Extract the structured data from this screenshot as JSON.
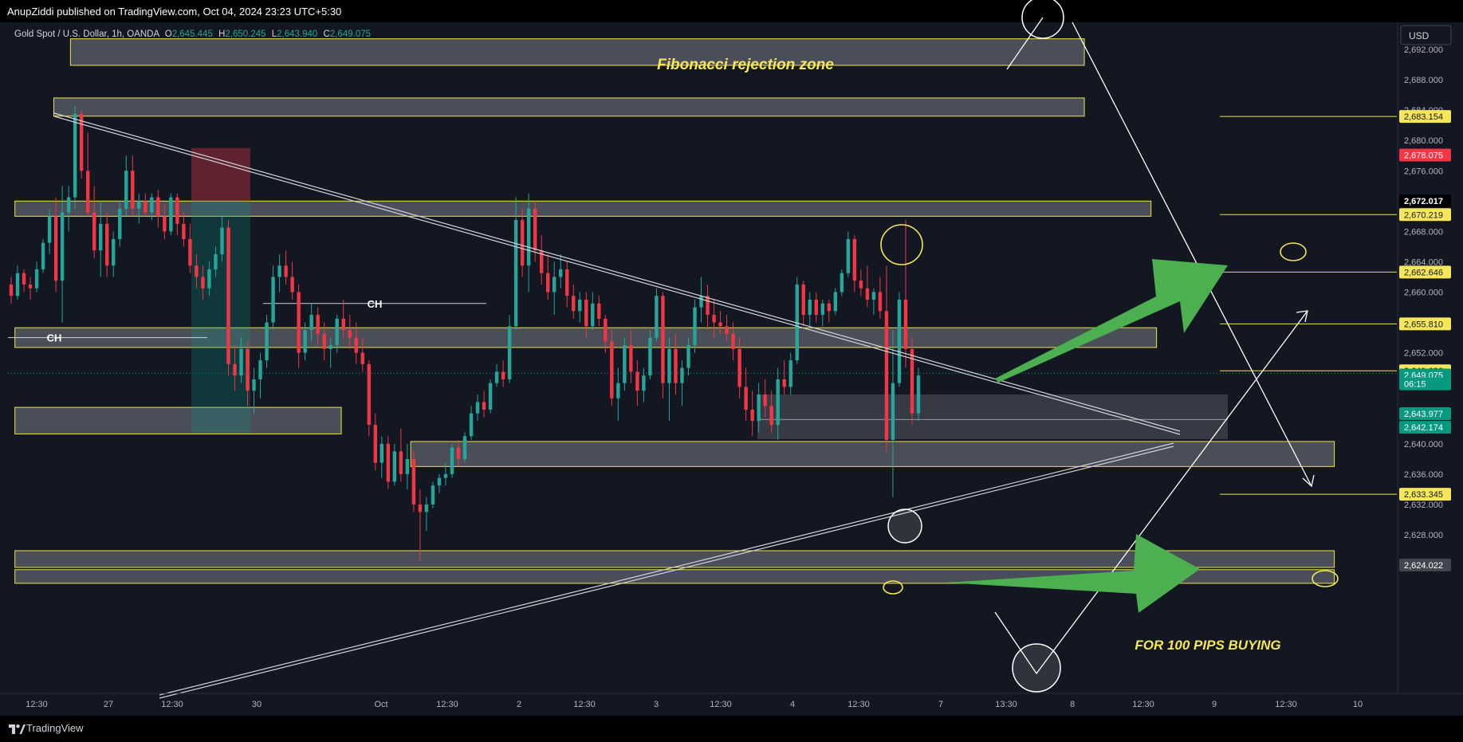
{
  "header": {
    "publisher": "AnupZiddi published on TradingView.com, Oct 04, 2024 23:23 UTC+5:30"
  },
  "legend": {
    "symbol": "Gold Spot / U.S. Dollar, 1h, OANDA",
    "o_label": "O",
    "o_value": "2,645.445",
    "h_label": "H",
    "h_value": "2,650.245",
    "l_label": "L",
    "l_value": "2,643.940",
    "c_label": "C",
    "c_value": "2,649.075"
  },
  "currency": "USD",
  "footer": {
    "brand": "TradingView"
  },
  "colors": {
    "background": "#131722",
    "up": "#26a69a",
    "down": "#f23645",
    "zone_border": "#f0e442",
    "annotation": "#f5e65a",
    "arrow": "#4caf50",
    "last_price": "#089981",
    "red_label": "#f23645"
  },
  "annotations": {
    "fib_zone": "Fibonacci rejection zone",
    "buy_text": "FOR 100 PIPS BUYING",
    "ch_left": "CH",
    "ch_mid": "CH"
  },
  "chart_data": {
    "type": "candlestick",
    "ylim": [
      2621,
      2694
    ],
    "y_ticks": [
      "2,628.000",
      "2,632.000",
      "2,636.000",
      "2,640.000",
      "2,644.000",
      "2,648.000",
      "2,652.000",
      "2,656.000",
      "2,660.000",
      "2,664.000",
      "2,668.000",
      "2,672.000",
      "2,676.000",
      "2,680.000",
      "2,684.000",
      "2,688.000",
      "2,692.000"
    ],
    "x_ticks": [
      "12:30",
      "27",
      "12:30",
      "30",
      "Oct",
      "12:30",
      "2",
      "12:30",
      "3",
      "12:30",
      "4",
      "12:30",
      "7",
      "13:30",
      "8",
      "12:30",
      "9",
      "12:30",
      "10"
    ],
    "price_labels": [
      {
        "text": "2,683.154",
        "price": 2683.154,
        "style": "yellow"
      },
      {
        "text": "2,678.075",
        "price": 2678.075,
        "style": "red"
      },
      {
        "text": "2,672.017",
        "price": 2672.017,
        "style": "black"
      },
      {
        "text": "2,670.219",
        "price": 2670.219,
        "style": "yellow"
      },
      {
        "text": "2,662.646",
        "price": 2662.646,
        "style": "yellow"
      },
      {
        "text": "2,655.810",
        "price": 2655.81,
        "style": "yellow"
      },
      {
        "text": "2,649.626",
        "price": 2649.626,
        "style": "yellow"
      },
      {
        "text": "2,649.075",
        "price": 2649.075,
        "style": "green"
      },
      {
        "text": "06:15",
        "price": 2647.9,
        "style": "green-sub"
      },
      {
        "text": "2,643.977",
        "price": 2643.977,
        "style": "green"
      },
      {
        "text": "2,642.174",
        "price": 2642.174,
        "style": "green"
      },
      {
        "text": "2,633.345",
        "price": 2633.345,
        "style": "yellow"
      },
      {
        "text": "2,624.022",
        "price": 2624.022,
        "style": "gray"
      }
    ],
    "zones": [
      {
        "name": "fib-zone",
        "x1": 0.045,
        "x2": 0.775,
        "p1": 2693.4,
        "p2": 2689.9
      },
      {
        "name": "upper-resistance-zone",
        "x1": 0.033,
        "x2": 0.775,
        "p1": 2685.6,
        "p2": 2683.2
      },
      {
        "name": "resistance-zone-2670",
        "x1": 0.005,
        "x2": 0.823,
        "p1": 2672.0,
        "p2": 2670.0
      },
      {
        "name": "ch-zone-2654",
        "x1": 0.005,
        "x2": 0.827,
        "p1": 2655.3,
        "p2": 2652.7
      },
      {
        "name": "left-support-zone",
        "x1": 0.005,
        "x2": 0.24,
        "p1": 2644.8,
        "p2": 2641.3
      },
      {
        "name": "support-zone-2639",
        "x1": 0.29,
        "x2": 0.955,
        "p1": 2640.3,
        "p2": 2637.0
      },
      {
        "name": "bottom-zone-2625",
        "x1": 0.005,
        "x2": 0.955,
        "p1": 2625.9,
        "p2": 2623.7
      },
      {
        "name": "bottom-zone-2622",
        "x1": 0.005,
        "x2": 0.955,
        "p1": 2623.4,
        "p2": 2621.6
      }
    ],
    "candles": [
      [
        2661.0,
        2662.0,
        2658.5,
        2659.5
      ],
      [
        2659.5,
        2663.5,
        2659.0,
        2662.5
      ],
      [
        2662.5,
        2663.0,
        2660.0,
        2661.0
      ],
      [
        2661.0,
        2662.0,
        2659.0,
        2660.5
      ],
      [
        2660.5,
        2664.0,
        2660.0,
        2663.0
      ],
      [
        2663.0,
        2667.0,
        2662.5,
        2666.5
      ],
      [
        2666.5,
        2671.0,
        2665.0,
        2670.0
      ],
      [
        2670.0,
        2672.5,
        2660.0,
        2661.5
      ],
      [
        2661.5,
        2674.0,
        2656.0,
        2670.5
      ],
      [
        2670.5,
        2674.0,
        2668.0,
        2672.5
      ],
      [
        2672.5,
        2684.5,
        2671.0,
        2683.5
      ],
      [
        2683.5,
        2684.0,
        2675.0,
        2676.0
      ],
      [
        2676.0,
        2681.0,
        2670.0,
        2670.5
      ],
      [
        2670.5,
        2674.0,
        2664.5,
        2665.5
      ],
      [
        2665.5,
        2672.0,
        2662.0,
        2669.0
      ],
      [
        2669.0,
        2670.5,
        2662.0,
        2663.5
      ],
      [
        2663.5,
        2668.0,
        2662.0,
        2667.0
      ],
      [
        2667.0,
        2672.0,
        2666.0,
        2671.0
      ],
      [
        2671.0,
        2678.0,
        2670.0,
        2676.0
      ],
      [
        2676.0,
        2678.0,
        2670.0,
        2671.0
      ],
      [
        2671.0,
        2673.0,
        2669.0,
        2672.0
      ],
      [
        2672.0,
        2673.0,
        2670.0,
        2670.5
      ],
      [
        2670.5,
        2673.0,
        2669.5,
        2672.5
      ],
      [
        2672.5,
        2673.5,
        2668.5,
        2670.0
      ],
      [
        2670.0,
        2671.5,
        2667.0,
        2668.0
      ],
      [
        2668.0,
        2673.0,
        2667.5,
        2672.5
      ],
      [
        2672.5,
        2673.0,
        2667.5,
        2669.0
      ],
      [
        2669.0,
        2670.5,
        2666.0,
        2667.0
      ],
      [
        2667.0,
        2669.0,
        2662.5,
        2663.5
      ],
      [
        2663.5,
        2665.0,
        2660.5,
        2662.0
      ],
      [
        2662.0,
        2663.5,
        2659.0,
        2660.5
      ],
      [
        2660.5,
        2664.0,
        2659.5,
        2663.0
      ],
      [
        2663.0,
        2666.0,
        2662.0,
        2665.0
      ],
      [
        2665.0,
        2670.0,
        2664.0,
        2668.5
      ],
      [
        2668.5,
        2669.5,
        2649.0,
        2650.5
      ],
      [
        2650.5,
        2653.0,
        2647.0,
        2649.0
      ],
      [
        2649.0,
        2654.0,
        2648.0,
        2652.5
      ],
      [
        2652.5,
        2653.5,
        2645.0,
        2647.0
      ],
      [
        2647.0,
        2650.0,
        2644.0,
        2648.5
      ],
      [
        2648.5,
        2652.0,
        2646.0,
        2651.0
      ],
      [
        2651.0,
        2657.0,
        2650.0,
        2656.0
      ],
      [
        2656.0,
        2663.5,
        2655.0,
        2662.0
      ],
      [
        2662.0,
        2665.0,
        2660.0,
        2663.5
      ],
      [
        2663.5,
        2665.5,
        2661.0,
        2662.0
      ],
      [
        2662.0,
        2664.0,
        2659.0,
        2660.0
      ],
      [
        2660.0,
        2661.0,
        2650.0,
        2652.0
      ],
      [
        2652.0,
        2656.0,
        2651.0,
        2655.0
      ],
      [
        2655.0,
        2658.5,
        2653.5,
        2657.0
      ],
      [
        2657.0,
        2658.0,
        2653.0,
        2654.5
      ],
      [
        2654.5,
        2656.0,
        2651.0,
        2652.5
      ],
      [
        2652.5,
        2654.0,
        2650.0,
        2653.0
      ],
      [
        2653.0,
        2657.0,
        2652.0,
        2656.5
      ],
      [
        2656.5,
        2659.0,
        2654.0,
        2655.0
      ],
      [
        2655.0,
        2657.0,
        2652.5,
        2654.0
      ],
      [
        2654.0,
        2656.0,
        2650.5,
        2652.0
      ],
      [
        2652.0,
        2654.0,
        2649.5,
        2650.5
      ],
      [
        2650.5,
        2651.0,
        2641.0,
        2642.5
      ],
      [
        2642.5,
        2644.0,
        2636.5,
        2637.5
      ],
      [
        2637.5,
        2641.0,
        2635.5,
        2640.0
      ],
      [
        2640.0,
        2641.0,
        2634.0,
        2635.0
      ],
      [
        2635.0,
        2640.0,
        2634.5,
        2639.0
      ],
      [
        2639.0,
        2642.0,
        2635.0,
        2636.0
      ],
      [
        2636.0,
        2640.0,
        2634.0,
        2638.0
      ],
      [
        2638.0,
        2639.0,
        2631.0,
        2632.0
      ],
      [
        2632.0,
        2634.0,
        2624.5,
        2631.0
      ],
      [
        2631.0,
        2633.0,
        2628.5,
        2632.0
      ],
      [
        2632.0,
        2635.0,
        2631.5,
        2634.5
      ],
      [
        2634.5,
        2636.0,
        2633.5,
        2635.5
      ],
      [
        2635.5,
        2637.5,
        2634.5,
        2636.0
      ],
      [
        2636.0,
        2640.0,
        2635.5,
        2639.5
      ],
      [
        2639.5,
        2640.5,
        2637.0,
        2638.0
      ],
      [
        2638.0,
        2641.5,
        2637.5,
        2641.0
      ],
      [
        2641.0,
        2645.0,
        2640.5,
        2644.0
      ],
      [
        2644.0,
        2646.5,
        2643.0,
        2645.5
      ],
      [
        2645.5,
        2647.0,
        2643.5,
        2644.5
      ],
      [
        2644.5,
        2648.5,
        2644.0,
        2648.0
      ],
      [
        2648.0,
        2650.5,
        2647.5,
        2649.5
      ],
      [
        2649.5,
        2651.0,
        2647.5,
        2648.5
      ],
      [
        2648.5,
        2657.0,
        2648.0,
        2655.5
      ],
      [
        2655.5,
        2672.5,
        2655.0,
        2669.5
      ],
      [
        2669.5,
        2671.0,
        2662.0,
        2663.5
      ],
      [
        2663.5,
        2673.0,
        2660.0,
        2671.0
      ],
      [
        2671.0,
        2672.0,
        2664.0,
        2665.5
      ],
      [
        2665.5,
        2667.5,
        2661.0,
        2662.5
      ],
      [
        2662.5,
        2665.0,
        2659.0,
        2660.0
      ],
      [
        2660.0,
        2664.0,
        2657.0,
        2662.0
      ],
      [
        2662.0,
        2665.0,
        2660.5,
        2663.0
      ],
      [
        2663.0,
        2664.0,
        2658.0,
        2659.5
      ],
      [
        2659.5,
        2661.0,
        2656.5,
        2657.5
      ],
      [
        2657.5,
        2660.0,
        2656.0,
        2659.0
      ],
      [
        2659.0,
        2660.0,
        2654.0,
        2655.5
      ],
      [
        2655.5,
        2660.0,
        2655.0,
        2658.5
      ],
      [
        2658.5,
        2659.5,
        2655.5,
        2656.5
      ],
      [
        2656.5,
        2657.0,
        2652.0,
        2653.5
      ],
      [
        2653.5,
        2655.0,
        2645.0,
        2646.0
      ],
      [
        2646.0,
        2650.0,
        2643.0,
        2648.0
      ],
      [
        2648.0,
        2654.0,
        2647.0,
        2653.0
      ],
      [
        2653.0,
        2655.0,
        2648.0,
        2649.5
      ],
      [
        2649.5,
        2651.0,
        2645.0,
        2647.0
      ],
      [
        2647.0,
        2650.0,
        2645.5,
        2649.0
      ],
      [
        2649.0,
        2655.0,
        2648.5,
        2654.0
      ],
      [
        2654.0,
        2660.5,
        2653.5,
        2659.5
      ],
      [
        2659.5,
        2660.0,
        2646.0,
        2648.0
      ],
      [
        2648.0,
        2654.0,
        2643.0,
        2652.5
      ],
      [
        2652.5,
        2654.5,
        2646.5,
        2648.0
      ],
      [
        2648.0,
        2651.0,
        2645.0,
        2650.0
      ],
      [
        2650.0,
        2654.0,
        2649.0,
        2653.0
      ],
      [
        2653.0,
        2659.0,
        2652.0,
        2658.0
      ],
      [
        2658.0,
        2662.0,
        2656.0,
        2659.5
      ],
      [
        2659.5,
        2661.0,
        2655.0,
        2657.0
      ],
      [
        2657.0,
        2659.0,
        2654.0,
        2656.0
      ],
      [
        2656.0,
        2657.5,
        2654.5,
        2655.5
      ],
      [
        2655.5,
        2657.0,
        2653.5,
        2654.5
      ],
      [
        2654.5,
        2656.0,
        2651.0,
        2652.5
      ],
      [
        2652.5,
        2654.0,
        2646.0,
        2647.5
      ],
      [
        2647.5,
        2650.0,
        2643.0,
        2644.5
      ],
      [
        2644.5,
        2647.0,
        2641.0,
        2643.0
      ],
      [
        2643.0,
        2648.0,
        2641.5,
        2646.5
      ],
      [
        2646.5,
        2648.5,
        2643.5,
        2645.0
      ],
      [
        2645.0,
        2647.0,
        2641.5,
        2642.5
      ],
      [
        2642.5,
        2650.0,
        2640.5,
        2648.5
      ],
      [
        2648.5,
        2651.0,
        2646.5,
        2647.5
      ],
      [
        2647.5,
        2652.0,
        2646.5,
        2651.0
      ],
      [
        2651.0,
        2662.0,
        2650.5,
        2661.0
      ],
      [
        2661.0,
        2661.5,
        2655.5,
        2657.0
      ],
      [
        2657.0,
        2660.0,
        2655.5,
        2659.0
      ],
      [
        2659.0,
        2660.0,
        2656.0,
        2657.0
      ],
      [
        2657.0,
        2659.0,
        2655.5,
        2658.5
      ],
      [
        2658.5,
        2659.0,
        2656.0,
        2657.5
      ],
      [
        2657.5,
        2660.5,
        2657.0,
        2660.0
      ],
      [
        2660.0,
        2663.0,
        2659.5,
        2662.5
      ],
      [
        2662.5,
        2668.0,
        2662.0,
        2667.0
      ],
      [
        2667.0,
        2667.5,
        2660.0,
        2661.5
      ],
      [
        2661.5,
        2663.0,
        2659.5,
        2660.5
      ],
      [
        2660.5,
        2663.5,
        2658.0,
        2659.0
      ],
      [
        2659.0,
        2660.5,
        2657.0,
        2660.0
      ],
      [
        2660.0,
        2662.0,
        2656.5,
        2657.5
      ],
      [
        2657.5,
        2663.5,
        2639.0,
        2640.5
      ],
      [
        2640.5,
        2655.0,
        2633.0,
        2648.0
      ],
      [
        2648.0,
        2660.0,
        2647.5,
        2659.0
      ],
      [
        2659.0,
        2669.5,
        2650.0,
        2652.5
      ],
      [
        2652.5,
        2654.0,
        2642.5,
        2644.0
      ],
      [
        2644.0,
        2650.0,
        2643.0,
        2649.0
      ]
    ],
    "ch_level_mid": 2658.5,
    "ch_level_left": 2654.0,
    "dotted_last": 2649.3
  }
}
